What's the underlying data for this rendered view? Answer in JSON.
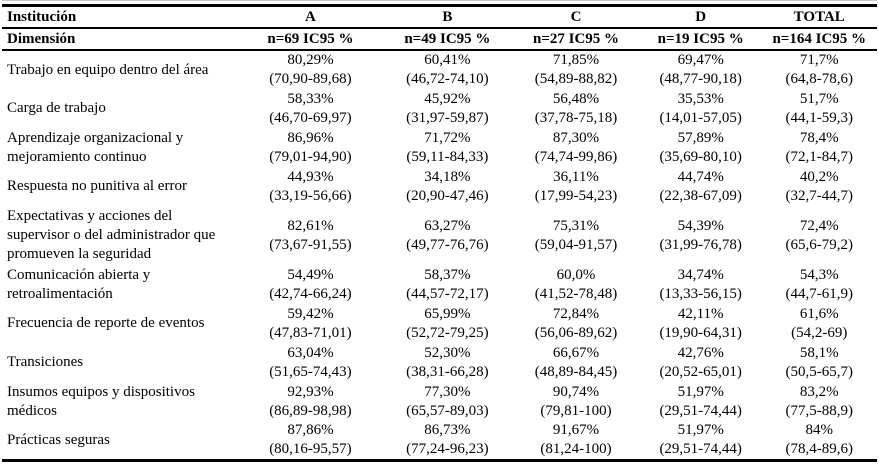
{
  "table": {
    "header_row_1": {
      "label": "Institución",
      "columns": [
        "A",
        "B",
        "C",
        "D",
        "TOTAL"
      ]
    },
    "header_row_2": {
      "label": "Dimensión",
      "columns": [
        "n=69 IC95 %",
        "n=49 IC95 %",
        "n=27 IC95 %",
        "n=19 IC95 %",
        "n=164 IC95 %"
      ]
    },
    "rows": [
      {
        "dimension": "Trabajo en equipo dentro del área",
        "cells": [
          {
            "pct": "80,29%",
            "ci": "(70,90-89,68)"
          },
          {
            "pct": "60,41%",
            "ci": "(46,72-74,10)"
          },
          {
            "pct": "71,85%",
            "ci": "(54,89-88,82)"
          },
          {
            "pct": "69,47%",
            "ci": "(48,77-90,18)"
          },
          {
            "pct": "71,7%",
            "ci": "(64,8-78,6)"
          }
        ]
      },
      {
        "dimension": "Carga de trabajo",
        "cells": [
          {
            "pct": "58,33%",
            "ci": "(46,70-69,97)"
          },
          {
            "pct": "45,92%",
            "ci": "(31,97-59,87)"
          },
          {
            "pct": "56,48%",
            "ci": "(37,78-75,18)"
          },
          {
            "pct": "35,53%",
            "ci": "(14,01-57,05)"
          },
          {
            "pct": "51,7%",
            "ci": "(44,1-59,3)"
          }
        ]
      },
      {
        "dimension": "Aprendizaje organizacional y mejoramiento continuo",
        "cells": [
          {
            "pct": "86,96%",
            "ci": "(79,01-94,90)"
          },
          {
            "pct": "71,72%",
            "ci": "(59,11-84,33)"
          },
          {
            "pct": "87,30%",
            "ci": "(74,74-99,86)"
          },
          {
            "pct": "57,89%",
            "ci": "(35,69-80,10)"
          },
          {
            "pct": "78,4%",
            "ci": "(72,1-84,7)"
          }
        ]
      },
      {
        "dimension": "Respuesta no punitiva al error",
        "cells": [
          {
            "pct": "44,93%",
            "ci": "(33,19-56,66)"
          },
          {
            "pct": "34,18%",
            "ci": "(20,90-47,46)"
          },
          {
            "pct": "36,11%",
            "ci": "(17,99-54,23)"
          },
          {
            "pct": "44,74%",
            "ci": "(22,38-67,09)"
          },
          {
            "pct": "40,2%",
            "ci": "(32,7-44,7)"
          }
        ]
      },
      {
        "dimension": "Expectativas y acciones del supervisor o del administrador que promueven la seguridad",
        "cells": [
          {
            "pct": "82,61%",
            "ci": "(73,67-91,55)"
          },
          {
            "pct": "63,27%",
            "ci": "(49,77-76,76)"
          },
          {
            "pct": "75,31%",
            "ci": "(59,04-91,57)"
          },
          {
            "pct": "54,39%",
            "ci": "(31,99-76,78)"
          },
          {
            "pct": "72,4%",
            "ci": "(65,6-79,2)"
          }
        ]
      },
      {
        "dimension": "Comunicación abierta y retroalimentación",
        "cells": [
          {
            "pct": "54,49%",
            "ci": "(42,74-66,24)"
          },
          {
            "pct": "58,37%",
            "ci": "(44,57-72,17)"
          },
          {
            "pct": "60,0%",
            "ci": "(41,52-78,48)"
          },
          {
            "pct": "34,74%",
            "ci": "(13,33-56,15)"
          },
          {
            "pct": "54,3%",
            "ci": "(44,7-61,9)"
          }
        ]
      },
      {
        "dimension": "Frecuencia de reporte de eventos",
        "cells": [
          {
            "pct": "59,42%",
            "ci": "(47,83-71,01)"
          },
          {
            "pct": "65,99%",
            "ci": "(52,72-79,25)"
          },
          {
            "pct": "72,84%",
            "ci": "(56,06-89,62)"
          },
          {
            "pct": "42,11%",
            "ci": "(19,90-64,31)"
          },
          {
            "pct": "61,6%",
            "ci": "(54,2-69)"
          }
        ]
      },
      {
        "dimension": "Transiciones",
        "cells": [
          {
            "pct": "63,04%",
            "ci": "(51,65-74,43)"
          },
          {
            "pct": "52,30%",
            "ci": "(38,31-66,28)"
          },
          {
            "pct": "66,67%",
            "ci": "(48,89-84,45)"
          },
          {
            "pct": "42,76%",
            "ci": "(20,52-65,01)"
          },
          {
            "pct": "58,1%",
            "ci": "(50,5-65,7)"
          }
        ]
      },
      {
        "dimension": "Insumos equipos y dispositivos médicos",
        "cells": [
          {
            "pct": "92,93%",
            "ci": "(86,89-98,98)"
          },
          {
            "pct": "77,30%",
            "ci": "(65,57-89,03)"
          },
          {
            "pct": "90,74%",
            "ci": "(79,81-100)"
          },
          {
            "pct": "51,97%",
            "ci": "(29,51-74,44)"
          },
          {
            "pct": "83,2%",
            "ci": "(77,5-88,9)"
          }
        ]
      },
      {
        "dimension": "Prácticas seguras",
        "cells": [
          {
            "pct": "87,86%",
            "ci": "(80,16-95,57)"
          },
          {
            "pct": "86,73%",
            "ci": "(77,24-96,23)"
          },
          {
            "pct": "91,67%",
            "ci": "(81,24-100)"
          },
          {
            "pct": "51,97%",
            "ci": "(29,51-74,44)"
          },
          {
            "pct": "84%",
            "ci": "(78,4-89,6)"
          }
        ]
      }
    ]
  },
  "colors": {
    "text": "#000000",
    "background": "#ffffff",
    "border": "#000000"
  }
}
